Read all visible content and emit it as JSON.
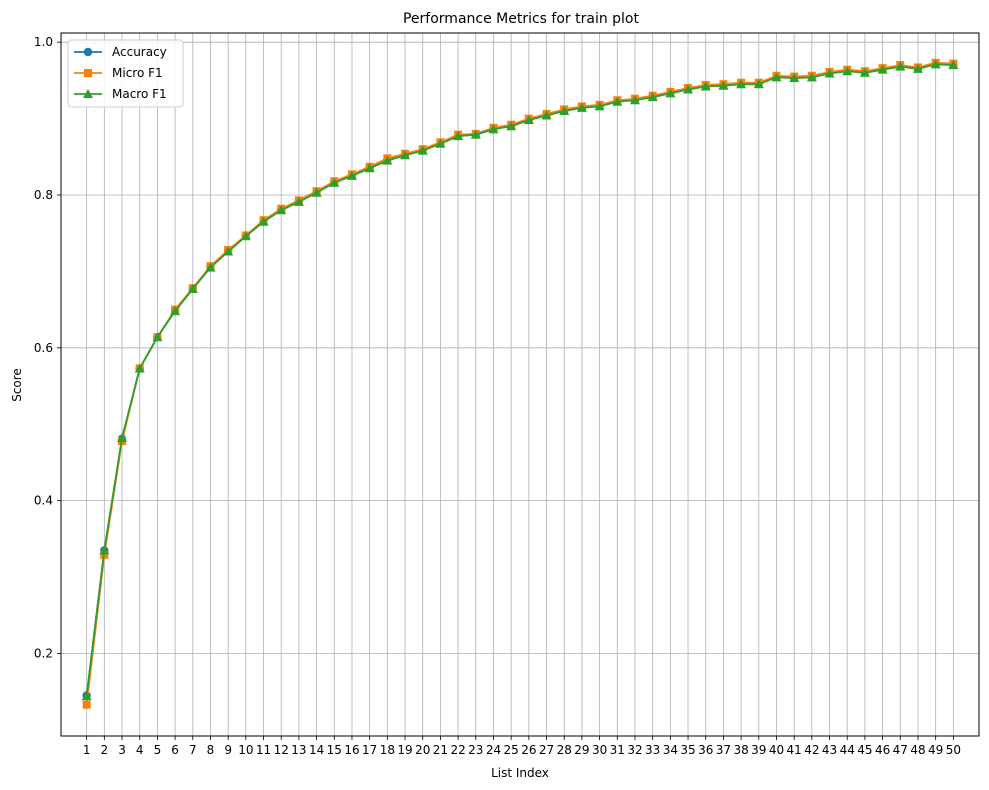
{
  "chart_data": {
    "type": "line",
    "title": "Performance Metrics for train plot",
    "xlabel": "List Index",
    "ylabel": "Score",
    "x": [
      1,
      2,
      3,
      4,
      5,
      6,
      7,
      8,
      9,
      10,
      11,
      12,
      13,
      14,
      15,
      16,
      17,
      18,
      19,
      20,
      21,
      22,
      23,
      24,
      25,
      26,
      27,
      28,
      29,
      30,
      31,
      32,
      33,
      34,
      35,
      36,
      37,
      38,
      39,
      40,
      41,
      42,
      43,
      44,
      45,
      46,
      47,
      48,
      49,
      50
    ],
    "xlim": [
      -0.45,
      51.45
    ],
    "ylim": [
      0.092,
      1.012
    ],
    "yticks": [
      0.2,
      0.4,
      0.6,
      0.8,
      1.0
    ],
    "ytick_labels": [
      "0.2",
      "0.4",
      "0.6",
      "0.8",
      "1.0"
    ],
    "grid": true,
    "legend_position": "top-left",
    "series": [
      {
        "name": "Accuracy",
        "color": "#1f77b4",
        "marker": "circle",
        "values": [
          0.145,
          0.335,
          0.481,
          0.573,
          0.614,
          0.649,
          0.678,
          0.706,
          0.727,
          0.747,
          0.766,
          0.781,
          0.792,
          0.804,
          0.817,
          0.826,
          0.836,
          0.846,
          0.853,
          0.859,
          0.868,
          0.877,
          0.879,
          0.886,
          0.891,
          0.899,
          0.905,
          0.911,
          0.915,
          0.917,
          0.923,
          0.925,
          0.929,
          0.934,
          0.939,
          0.943,
          0.944,
          0.946,
          0.946,
          0.955,
          0.954,
          0.955,
          0.96,
          0.963,
          0.961,
          0.965,
          0.969,
          0.966,
          0.972,
          0.971
        ]
      },
      {
        "name": "Micro F1",
        "color": "#ff7f0e",
        "marker": "square",
        "values": [
          0.133,
          0.329,
          0.478,
          0.573,
          0.614,
          0.65,
          0.678,
          0.707,
          0.728,
          0.747,
          0.767,
          0.782,
          0.793,
          0.805,
          0.818,
          0.827,
          0.837,
          0.848,
          0.854,
          0.86,
          0.869,
          0.879,
          0.88,
          0.888,
          0.892,
          0.9,
          0.906,
          0.912,
          0.916,
          0.918,
          0.924,
          0.926,
          0.93,
          0.935,
          0.94,
          0.944,
          0.945,
          0.947,
          0.947,
          0.956,
          0.955,
          0.956,
          0.961,
          0.964,
          0.962,
          0.966,
          0.97,
          0.967,
          0.973,
          0.972
        ]
      },
      {
        "name": "Macro F1",
        "color": "#2ca02c",
        "marker": "triangle",
        "values": [
          0.144,
          0.335,
          0.482,
          0.573,
          0.614,
          0.648,
          0.677,
          0.705,
          0.726,
          0.746,
          0.765,
          0.78,
          0.791,
          0.803,
          0.816,
          0.825,
          0.835,
          0.845,
          0.852,
          0.858,
          0.867,
          0.877,
          0.879,
          0.886,
          0.89,
          0.898,
          0.904,
          0.91,
          0.914,
          0.916,
          0.922,
          0.924,
          0.928,
          0.933,
          0.938,
          0.942,
          0.943,
          0.945,
          0.945,
          0.954,
          0.953,
          0.954,
          0.959,
          0.962,
          0.96,
          0.964,
          0.968,
          0.965,
          0.971,
          0.97
        ]
      }
    ]
  }
}
